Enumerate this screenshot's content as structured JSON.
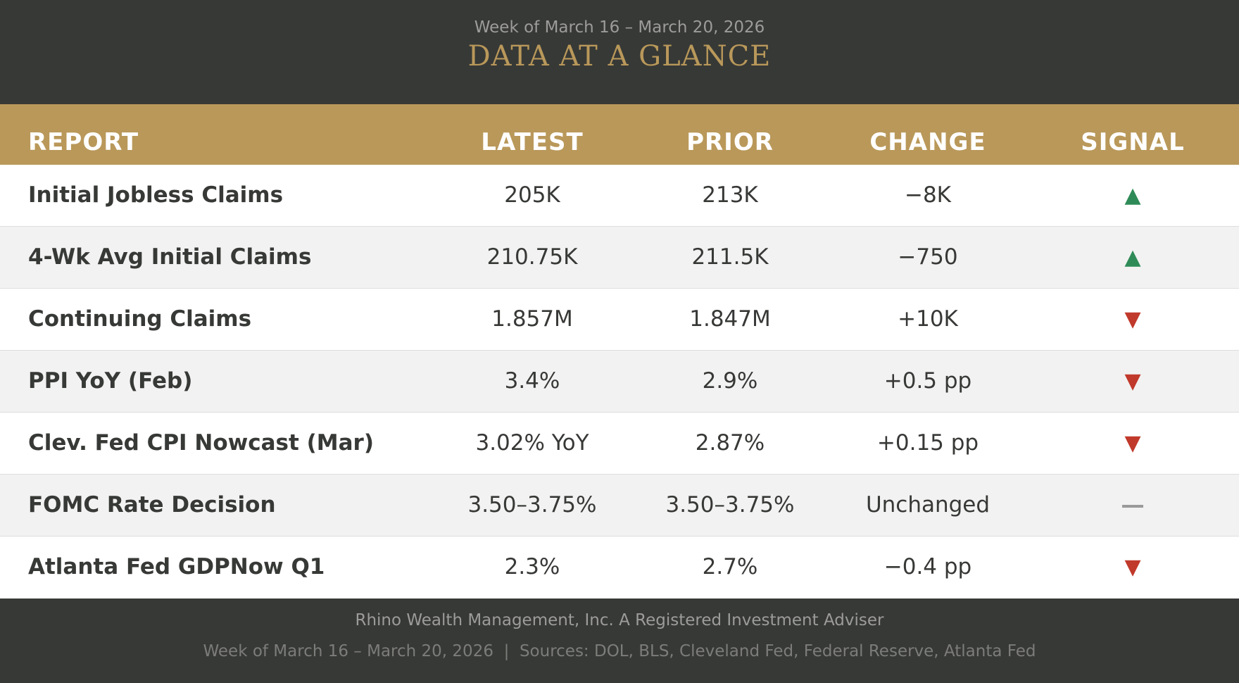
{
  "header": {
    "subtitle": "Week of March 16 – March 20, 2026",
    "title": "DATA AT A GLANCE"
  },
  "columns": {
    "report": "REPORT",
    "latest": "LATEST",
    "prior": "PRIOR",
    "change": "CHANGE",
    "signal": "SIGNAL"
  },
  "rows": [
    {
      "report": "Initial Jobless Claims",
      "latest": "205K",
      "prior": "213K",
      "change": "−8K",
      "signal": "▲",
      "signal_type": "up"
    },
    {
      "report": "4-Wk Avg Initial Claims",
      "latest": "210.75K",
      "prior": "211.5K",
      "change": "−750",
      "signal": "▲",
      "signal_type": "up"
    },
    {
      "report": "Continuing Claims",
      "latest": "1.857M",
      "prior": "1.847M",
      "change": "+10K",
      "signal": "▼",
      "signal_type": "down"
    },
    {
      "report": "PPI YoY (Feb)",
      "latest": "3.4%",
      "prior": "2.9%",
      "change": "+0.5 pp",
      "signal": "▼",
      "signal_type": "down"
    },
    {
      "report": "Clev. Fed CPI Nowcast (Mar)",
      "latest": "3.02% YoY",
      "prior": "2.87%",
      "change": "+0.15 pp",
      "signal": "▼",
      "signal_type": "down"
    },
    {
      "report": "FOMC Rate Decision",
      "latest": "3.50–3.75%",
      "prior": "3.50–3.75%",
      "change": "Unchanged",
      "signal": "",
      "signal_type": "flat"
    },
    {
      "report": "Atlanta Fed GDPNow Q1",
      "latest": "2.3%",
      "prior": "2.7%",
      "change": "−0.4 pp",
      "signal": "▼",
      "signal_type": "down"
    }
  ],
  "signal_colors": {
    "up": "#2e8b57",
    "down": "#c0392b",
    "flat": "#9a9a9a"
  },
  "footer": {
    "line1": "Rhino Wealth Management, Inc. A Registered Investment Adviser",
    "line2": "Week of March 16 – March 20, 2026  |  Sources: DOL, BLS, Cleveland Fed, Federal Reserve, Atlanta Fed"
  }
}
